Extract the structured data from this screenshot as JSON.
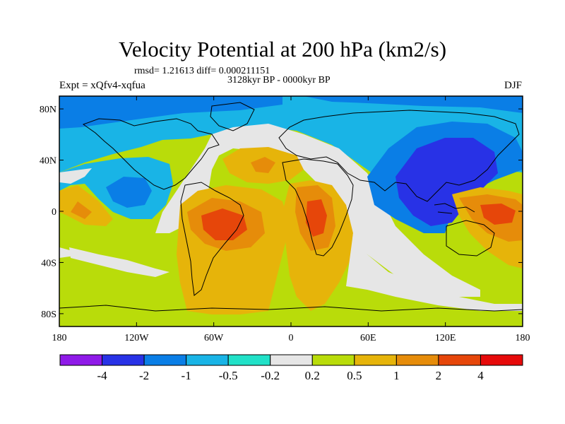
{
  "chart_data": {
    "type": "filled-contour-map",
    "title": "Velocity Potential at 200 hPa (km2/s)",
    "stats_line": "rmsd= 1.21613 diff= 0.000211151",
    "subtitle": "3128kyr BP - 0000kyr BP",
    "left_label": "Expt = xQfv4-xqfua",
    "right_label": "DJF",
    "x_axis": {
      "range": [
        -180,
        180
      ],
      "ticks": [
        -180,
        -120,
        -60,
        0,
        60,
        120,
        180
      ],
      "tick_labels": [
        "180",
        "120W",
        "60W",
        "0",
        "60E",
        "120E",
        "180"
      ]
    },
    "y_axis": {
      "range": [
        -90,
        90
      ],
      "ticks": [
        80,
        40,
        0,
        -40,
        -80
      ],
      "tick_labels": [
        "80N",
        "40N",
        "0",
        "40S",
        "80S"
      ]
    },
    "colorbar": {
      "labels": [
        "-4",
        "-2",
        "-1",
        "-0.5",
        "-0.2",
        "0.2",
        "0.5",
        "1",
        "2",
        "4"
      ],
      "colors": [
        "#8f1ae8",
        "#2832e6",
        "#0a7ee6",
        "#19b4e6",
        "#21e1c8",
        "#e6e6e6",
        "#b9dc0a",
        "#e6b40a",
        "#e68c0a",
        "#e6460a",
        "#e60a0a"
      ]
    }
  },
  "colors": {
    "coast": "#000000",
    "frame": "#000000"
  }
}
